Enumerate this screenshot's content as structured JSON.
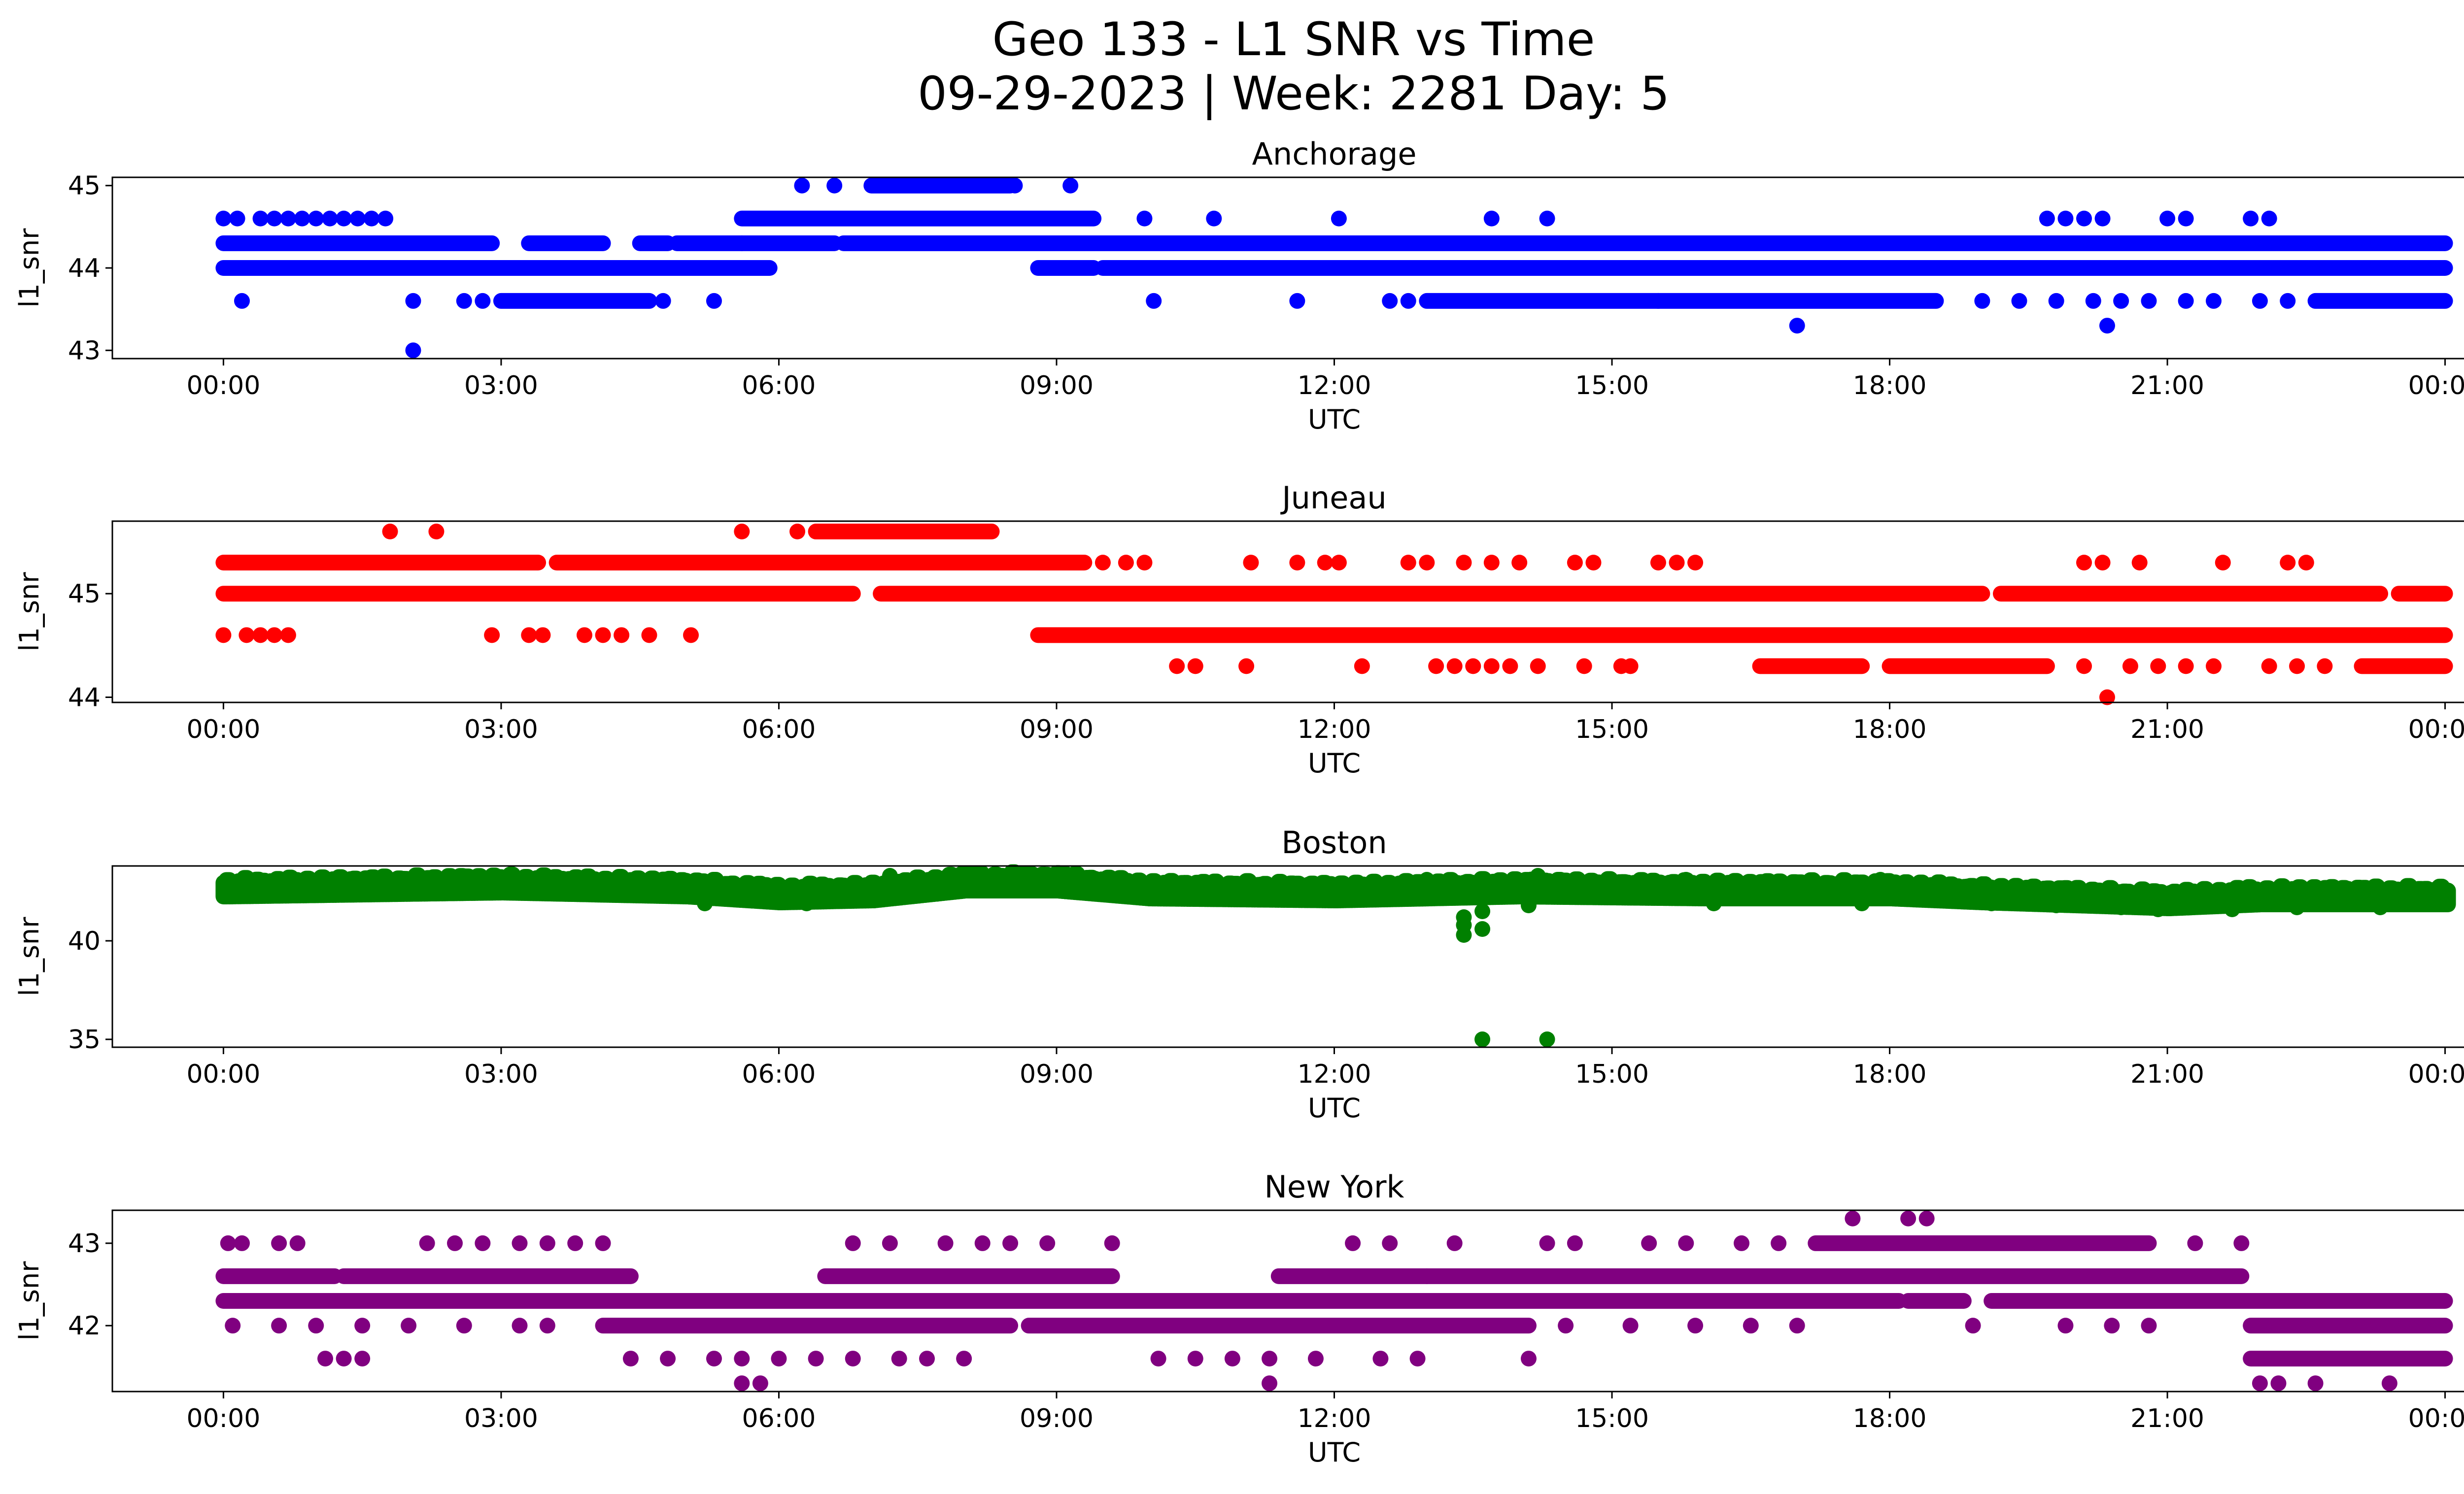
{
  "figure": {
    "title_line1": "Geo 133 - L1 SNR vs Time",
    "title_line2": "09-29-2023 | Week: 2281 Day: 5"
  },
  "chart_data": [
    {
      "type": "scatter",
      "title": "Anchorage",
      "xlabel": "UTC",
      "ylabel": "l1_snr",
      "color": "#0000ff",
      "x_ticks": [
        "00:00",
        "03:00",
        "06:00",
        "09:00",
        "12:00",
        "15:00",
        "18:00",
        "21:00",
        "00:00"
      ],
      "xlim_hours": [
        -1.2,
        25.2
      ],
      "y_ticks": [
        43,
        44,
        45
      ],
      "ylim": [
        42.9,
        45.1
      ],
      "bands": [
        {
          "y": 44.3,
          "segments": [
            [
              0,
              2.9
            ],
            [
              3.3,
              4.1
            ],
            [
              4.5,
              4.8
            ],
            [
              4.9,
              5.6
            ],
            [
              5.6,
              6.6
            ],
            [
              6.7,
              24
            ]
          ]
        },
        {
          "y": 44.0,
          "segments": [
            [
              0,
              5.9
            ],
            [
              8.8,
              9.4
            ],
            [
              9.5,
              24
            ]
          ]
        },
        {
          "y": 44.6,
          "segments": [
            [
              5.6,
              9.4
            ]
          ]
        },
        {
          "y": 45.0,
          "segments": [
            [
              7.0,
              8.5
            ]
          ]
        },
        {
          "y": 43.6,
          "segments": [
            [
              3.0,
              4.6
            ],
            [
              13.0,
              15.5
            ],
            [
              15.5,
              18.5
            ],
            [
              22.6,
              24
            ]
          ]
        }
      ],
      "points": [
        [
          0.0,
          44.6
        ],
        [
          0.15,
          44.6
        ],
        [
          0.4,
          44.6
        ],
        [
          0.55,
          44.6
        ],
        [
          0.7,
          44.6
        ],
        [
          0.85,
          44.6
        ],
        [
          1.0,
          44.6
        ],
        [
          1.15,
          44.6
        ],
        [
          1.3,
          44.6
        ],
        [
          1.45,
          44.6
        ],
        [
          1.6,
          44.6
        ],
        [
          1.75,
          44.6
        ],
        [
          0.2,
          43.6
        ],
        [
          2.05,
          43.6
        ],
        [
          2.05,
          43.0
        ],
        [
          2.6,
          43.6
        ],
        [
          2.8,
          43.6
        ],
        [
          4.75,
          43.6
        ],
        [
          5.3,
          43.6
        ],
        [
          6.25,
          45.0
        ],
        [
          6.6,
          45.0
        ],
        [
          8.55,
          45.0
        ],
        [
          9.15,
          45.0
        ],
        [
          9.95,
          44.6
        ],
        [
          10.7,
          44.6
        ],
        [
          12.05,
          44.6
        ],
        [
          13.7,
          44.6
        ],
        [
          14.3,
          44.6
        ],
        [
          19.7,
          44.6
        ],
        [
          19.9,
          44.6
        ],
        [
          20.1,
          44.6
        ],
        [
          20.3,
          44.6
        ],
        [
          21.0,
          44.6
        ],
        [
          21.2,
          44.6
        ],
        [
          21.9,
          44.6
        ],
        [
          22.1,
          44.6
        ],
        [
          10.05,
          43.6
        ],
        [
          11.6,
          43.6
        ],
        [
          12.6,
          43.6
        ],
        [
          12.8,
          43.6
        ],
        [
          19.0,
          43.6
        ],
        [
          19.4,
          43.6
        ],
        [
          19.8,
          43.6
        ],
        [
          20.2,
          43.6
        ],
        [
          20.5,
          43.6
        ],
        [
          20.8,
          43.6
        ],
        [
          21.2,
          43.6
        ],
        [
          21.5,
          43.6
        ],
        [
          22.0,
          43.6
        ],
        [
          22.3,
          43.6
        ],
        [
          17.0,
          43.3
        ],
        [
          20.35,
          43.3
        ]
      ]
    },
    {
      "type": "scatter",
      "title": "Juneau",
      "xlabel": "UTC",
      "ylabel": "l1_snr",
      "color": "#ff0000",
      "x_ticks": [
        "00:00",
        "03:00",
        "06:00",
        "09:00",
        "12:00",
        "15:00",
        "18:00",
        "21:00",
        "00:00"
      ],
      "xlim_hours": [
        -1.2,
        25.2
      ],
      "y_ticks": [
        44,
        45
      ],
      "ylim": [
        43.95,
        45.7
      ],
      "bands": [
        {
          "y": 45.0,
          "segments": [
            [
              0,
              6.8
            ],
            [
              7.1,
              19.0
            ],
            [
              19.2,
              23.3
            ],
            [
              23.5,
              24
            ]
          ]
        },
        {
          "y": 45.3,
          "segments": [
            [
              0,
              3.4
            ],
            [
              3.6,
              9.3
            ]
          ]
        },
        {
          "y": 45.6,
          "segments": [
            [
              6.4,
              8.3
            ]
          ]
        },
        {
          "y": 44.6,
          "segments": [
            [
              8.8,
              24
            ]
          ]
        },
        {
          "y": 44.3,
          "segments": [
            [
              16.6,
              17.7
            ],
            [
              18.0,
              19.7
            ],
            [
              23.1,
              24
            ]
          ]
        }
      ],
      "points": [
        [
          0.0,
          44.6
        ],
        [
          0.25,
          44.6
        ],
        [
          0.4,
          44.6
        ],
        [
          0.55,
          44.6
        ],
        [
          0.7,
          44.6
        ],
        [
          2.9,
          44.6
        ],
        [
          3.3,
          44.6
        ],
        [
          3.45,
          44.6
        ],
        [
          3.9,
          44.6
        ],
        [
          4.1,
          44.6
        ],
        [
          4.3,
          44.6
        ],
        [
          4.6,
          44.6
        ],
        [
          5.05,
          44.6
        ],
        [
          1.8,
          45.6
        ],
        [
          2.3,
          45.6
        ],
        [
          5.6,
          45.6
        ],
        [
          6.2,
          45.6
        ],
        [
          9.5,
          45.3
        ],
        [
          9.75,
          45.3
        ],
        [
          9.95,
          45.3
        ],
        [
          11.1,
          45.3
        ],
        [
          11.6,
          45.3
        ],
        [
          11.9,
          45.3
        ],
        [
          12.05,
          45.3
        ],
        [
          12.8,
          45.3
        ],
        [
          13.0,
          45.3
        ],
        [
          13.4,
          45.3
        ],
        [
          13.7,
          45.3
        ],
        [
          14.0,
          45.3
        ],
        [
          14.6,
          45.3
        ],
        [
          14.8,
          45.3
        ],
        [
          15.5,
          45.3
        ],
        [
          15.7,
          45.3
        ],
        [
          15.9,
          45.3
        ],
        [
          20.1,
          45.3
        ],
        [
          20.3,
          45.3
        ],
        [
          20.7,
          45.3
        ],
        [
          21.6,
          45.3
        ],
        [
          22.3,
          45.3
        ],
        [
          22.5,
          45.3
        ],
        [
          10.3,
          44.3
        ],
        [
          10.5,
          44.3
        ],
        [
          11.05,
          44.3
        ],
        [
          12.3,
          44.3
        ],
        [
          13.1,
          44.3
        ],
        [
          13.3,
          44.3
        ],
        [
          13.5,
          44.3
        ],
        [
          13.7,
          44.3
        ],
        [
          13.9,
          44.3
        ],
        [
          14.2,
          44.3
        ],
        [
          14.7,
          44.3
        ],
        [
          15.1,
          44.3
        ],
        [
          15.2,
          44.3
        ],
        [
          20.1,
          44.3
        ],
        [
          20.6,
          44.3
        ],
        [
          20.9,
          44.3
        ],
        [
          21.2,
          44.3
        ],
        [
          21.5,
          44.3
        ],
        [
          22.1,
          44.3
        ],
        [
          22.4,
          44.3
        ],
        [
          22.7,
          44.3
        ],
        [
          20.35,
          44.0
        ]
      ]
    },
    {
      "type": "scatter",
      "title": "Boston",
      "xlabel": "UTC",
      "ylabel": "l1_snr",
      "color": "#008000",
      "x_ticks": [
        "00:00",
        "03:00",
        "06:00",
        "09:00",
        "12:00",
        "15:00",
        "18:00",
        "21:00",
        "00:00"
      ],
      "xlim_hours": [
        -1.2,
        25.2
      ],
      "y_ticks": [
        35,
        40
      ],
      "ylim": [
        34.6,
        43.8
      ],
      "trend": [
        [
          0,
          42.6
        ],
        [
          3,
          42.8
        ],
        [
          5,
          42.6
        ],
        [
          6,
          42.3
        ],
        [
          7,
          42.4
        ],
        [
          8,
          42.9
        ],
        [
          9,
          42.9
        ],
        [
          10,
          42.5
        ],
        [
          12,
          42.4
        ],
        [
          14,
          42.6
        ],
        [
          16,
          42.5
        ],
        [
          18,
          42.5
        ],
        [
          19,
          42.3
        ],
        [
          21,
          42.0
        ],
        [
          22,
          42.2
        ],
        [
          24,
          42.2
        ]
      ],
      "points": [
        [
          13.4,
          41.2
        ],
        [
          13.4,
          40.8
        ],
        [
          13.4,
          40.3
        ],
        [
          13.6,
          41.5
        ],
        [
          13.6,
          40.6
        ],
        [
          14.1,
          41.8
        ],
        [
          13.6,
          35.0
        ],
        [
          14.3,
          35.0
        ],
        [
          3.1,
          43.3
        ],
        [
          4.9,
          42.9
        ],
        [
          7.2,
          43.3
        ],
        [
          7.8,
          43.2
        ],
        [
          8.6,
          43.4
        ],
        [
          9.1,
          43.4
        ],
        [
          10.2,
          42.9
        ],
        [
          13.0,
          43.1
        ],
        [
          14.2,
          43.3
        ],
        [
          15.8,
          43.1
        ],
        [
          17.2,
          42.9
        ],
        [
          17.9,
          43.1
        ],
        [
          5.2,
          41.9
        ],
        [
          6.3,
          41.9
        ],
        [
          16.1,
          41.9
        ],
        [
          17.7,
          41.9
        ],
        [
          19.1,
          41.9
        ],
        [
          19.8,
          41.8
        ],
        [
          20.5,
          41.7
        ],
        [
          20.9,
          41.6
        ],
        [
          21.7,
          41.6
        ],
        [
          22.4,
          41.7
        ],
        [
          23.3,
          41.7
        ]
      ]
    },
    {
      "type": "scatter",
      "title": "New York",
      "xlabel": "UTC",
      "ylabel": "l1_snr",
      "color": "#800080",
      "x_ticks": [
        "00:00",
        "03:00",
        "06:00",
        "09:00",
        "12:00",
        "15:00",
        "18:00",
        "21:00",
        "00:00"
      ],
      "xlim_hours": [
        -1.2,
        25.2
      ],
      "y_ticks": [
        42,
        43
      ],
      "ylim": [
        41.2,
        43.4
      ],
      "bands": [
        {
          "y": 42.3,
          "segments": [
            [
              0,
              18.1
            ],
            [
              18.2,
              18.8
            ],
            [
              19.1,
              24
            ]
          ]
        },
        {
          "y": 42.6,
          "segments": [
            [
              0,
              1.2
            ],
            [
              1.3,
              4.4
            ],
            [
              6.5,
              9.6
            ],
            [
              11.4,
              13.0
            ],
            [
              13.0,
              21.8
            ]
          ]
        },
        {
          "y": 42.0,
          "segments": [
            [
              4.1,
              8.5
            ],
            [
              8.7,
              14.1
            ],
            [
              21.9,
              24
            ]
          ]
        },
        {
          "y": 43.0,
          "segments": [
            [
              17.2,
              20.8
            ]
          ]
        },
        {
          "y": 41.6,
          "segments": [
            [
              21.9,
              24
            ]
          ]
        }
      ],
      "points": [
        [
          0.05,
          43.0
        ],
        [
          0.2,
          43.0
        ],
        [
          0.6,
          43.0
        ],
        [
          0.8,
          43.0
        ],
        [
          2.2,
          43.0
        ],
        [
          2.5,
          43.0
        ],
        [
          2.8,
          43.0
        ],
        [
          3.2,
          43.0
        ],
        [
          3.5,
          43.0
        ],
        [
          3.8,
          43.0
        ],
        [
          4.1,
          43.0
        ],
        [
          6.8,
          43.0
        ],
        [
          7.2,
          43.0
        ],
        [
          7.8,
          43.0
        ],
        [
          8.2,
          43.0
        ],
        [
          8.5,
          43.0
        ],
        [
          8.9,
          43.0
        ],
        [
          9.6,
          43.0
        ],
        [
          12.2,
          43.0
        ],
        [
          12.6,
          43.0
        ],
        [
          13.3,
          43.0
        ],
        [
          14.3,
          43.0
        ],
        [
          14.6,
          43.0
        ],
        [
          15.4,
          43.0
        ],
        [
          15.8,
          43.0
        ],
        [
          16.4,
          43.0
        ],
        [
          16.8,
          43.0
        ],
        [
          21.3,
          43.0
        ],
        [
          21.8,
          43.0
        ],
        [
          17.6,
          43.3
        ],
        [
          18.2,
          43.3
        ],
        [
          18.4,
          43.3
        ],
        [
          0.1,
          42.0
        ],
        [
          0.6,
          42.0
        ],
        [
          1.0,
          42.0
        ],
        [
          1.5,
          42.0
        ],
        [
          2.0,
          42.0
        ],
        [
          2.6,
          42.0
        ],
        [
          3.2,
          42.0
        ],
        [
          3.5,
          42.0
        ],
        [
          14.5,
          42.0
        ],
        [
          15.2,
          42.0
        ],
        [
          15.9,
          42.0
        ],
        [
          16.5,
          42.0
        ],
        [
          17.0,
          42.0
        ],
        [
          18.9,
          42.0
        ],
        [
          19.9,
          42.0
        ],
        [
          20.4,
          42.0
        ],
        [
          20.8,
          42.0
        ],
        [
          1.1,
          41.6
        ],
        [
          1.3,
          41.6
        ],
        [
          1.5,
          41.6
        ],
        [
          4.4,
          41.6
        ],
        [
          4.8,
          41.6
        ],
        [
          5.3,
          41.6
        ],
        [
          5.6,
          41.6
        ],
        [
          6.0,
          41.6
        ],
        [
          6.4,
          41.6
        ],
        [
          6.8,
          41.6
        ],
        [
          7.3,
          41.6
        ],
        [
          7.6,
          41.6
        ],
        [
          8.0,
          41.6
        ],
        [
          10.1,
          41.6
        ],
        [
          10.5,
          41.6
        ],
        [
          10.9,
          41.6
        ],
        [
          11.3,
          41.6
        ],
        [
          11.8,
          41.6
        ],
        [
          12.5,
          41.6
        ],
        [
          12.9,
          41.6
        ],
        [
          14.1,
          41.6
        ],
        [
          5.6,
          41.3
        ],
        [
          5.8,
          41.3
        ],
        [
          11.3,
          41.3
        ],
        [
          22.0,
          41.3
        ],
        [
          22.2,
          41.3
        ],
        [
          22.6,
          41.3
        ],
        [
          23.4,
          41.3
        ]
      ]
    }
  ]
}
